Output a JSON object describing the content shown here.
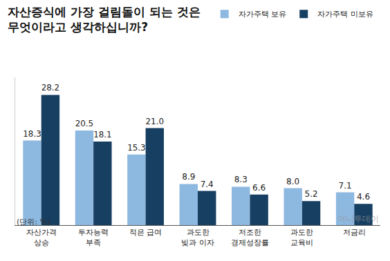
{
  "chart_data": {
    "type": "bar",
    "title": "자산증식에 가장 걸림돌이 되는 것은\n무엇이라고 생각하십니까?",
    "subtitle": "(단위: %)",
    "annotations": [
      "머니투데이"
    ],
    "categories": [
      "자산가격\n상승",
      "투자능력\n부족",
      "적은 급여",
      "과도한\n빚과 이자",
      "저조한\n경제성장률",
      "과도한\n교육비",
      "저금리"
    ],
    "series": [
      {
        "name": "자가주택 보유",
        "color": "#8db8e0",
        "values": [
          18.3,
          20.5,
          15.3,
          8.9,
          8.3,
          8.0,
          7.1
        ],
        "value_labels": [
          "18.3",
          "20.5",
          "15.3",
          "8.9",
          "8.3",
          "8.0",
          "7.1"
        ]
      },
      {
        "name": "자가주택 미보유",
        "color": "#173f62",
        "values": [
          28.2,
          18.1,
          21.0,
          7.4,
          6.6,
          5.2,
          4.6
        ],
        "value_labels": [
          "28.2",
          "18.1",
          "21.0",
          "7.4",
          "6.6",
          "5.2",
          "4.6"
        ]
      }
    ],
    "ylim": [
      0,
      32
    ],
    "grid": false,
    "legend": "top right",
    "data_labels": true,
    "tick_labels": "x"
  }
}
